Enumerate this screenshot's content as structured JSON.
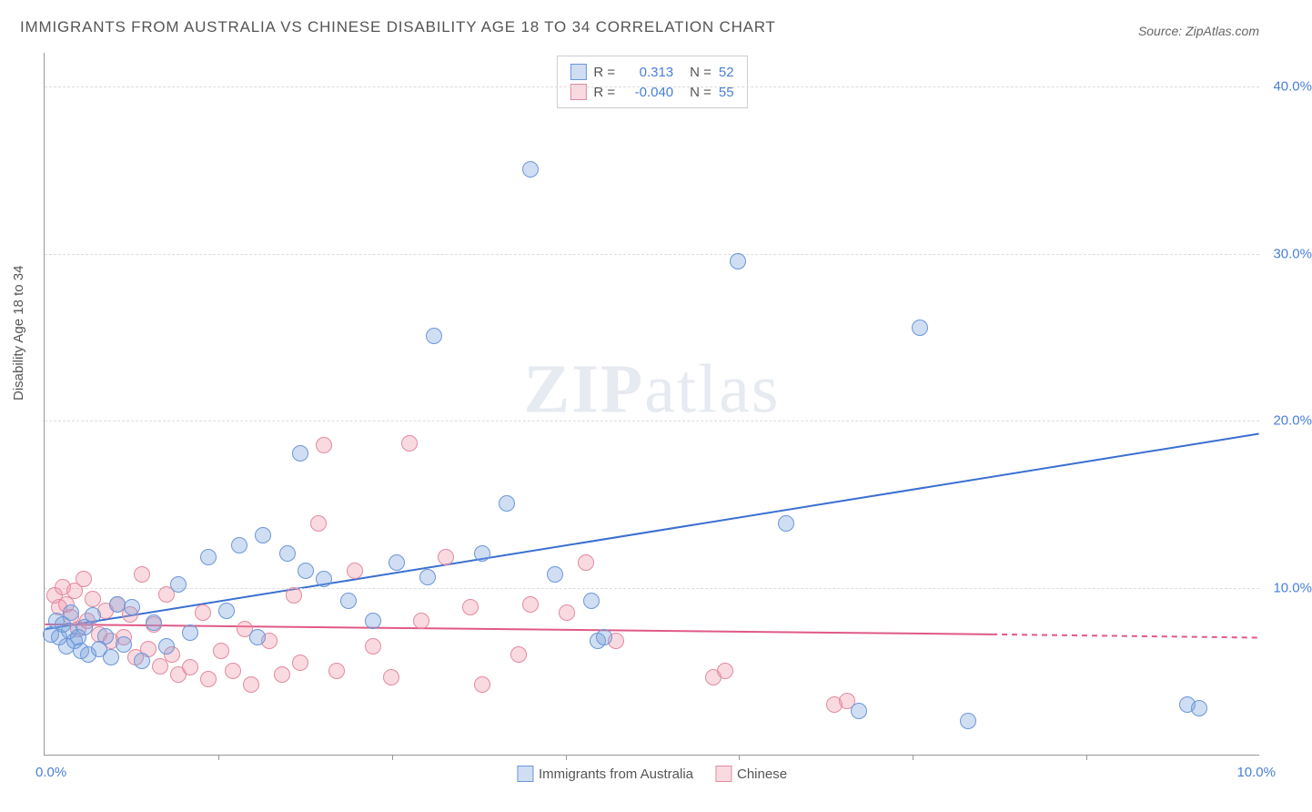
{
  "title": "IMMIGRANTS FROM AUSTRALIA VS CHINESE DISABILITY AGE 18 TO 34 CORRELATION CHART",
  "source": "Source: ZipAtlas.com",
  "ylabel": "Disability Age 18 to 34",
  "watermark_a": "ZIP",
  "watermark_b": "atlas",
  "chart": {
    "type": "scatter",
    "background_color": "#ffffff",
    "grid_color": "#dddddd",
    "axis_color": "#999999",
    "xlim": [
      0,
      10
    ],
    "ylim": [
      0,
      42
    ],
    "ytick_labels": [
      "10.0%",
      "20.0%",
      "30.0%",
      "40.0%"
    ],
    "ytick_values": [
      10,
      20,
      30,
      40
    ],
    "xtick_first": "0.0%",
    "xtick_last": "10.0%",
    "xtick_marks": [
      1.43,
      2.86,
      4.29,
      5.71,
      7.14,
      8.57
    ],
    "marker_radius": 9,
    "marker_stroke_width": 1.5,
    "line_width": 2
  },
  "series": [
    {
      "name": "Immigrants from Australia",
      "fill": "rgba(120,160,220,0.35)",
      "stroke": "#6a97d8",
      "r_label": "R =",
      "r_value": "0.313",
      "n_label": "N =",
      "n_value": "52",
      "trend": {
        "x1": 0,
        "y1": 7.5,
        "x2": 10,
        "y2": 19.2,
        "dash": false,
        "color": "#3a6fd0"
      },
      "points": [
        [
          0.05,
          7.2
        ],
        [
          0.1,
          8.0
        ],
        [
          0.12,
          7.0
        ],
        [
          0.15,
          7.8
        ],
        [
          0.18,
          6.5
        ],
        [
          0.2,
          7.4
        ],
        [
          0.22,
          8.5
        ],
        [
          0.25,
          6.8
        ],
        [
          0.28,
          7.0
        ],
        [
          0.3,
          6.2
        ],
        [
          0.33,
          7.6
        ],
        [
          0.36,
          6.0
        ],
        [
          0.4,
          8.3
        ],
        [
          0.45,
          6.3
        ],
        [
          0.5,
          7.1
        ],
        [
          0.55,
          5.8
        ],
        [
          0.6,
          9.0
        ],
        [
          0.65,
          6.6
        ],
        [
          0.72,
          8.8
        ],
        [
          0.8,
          5.6
        ],
        [
          0.9,
          7.9
        ],
        [
          1.0,
          6.5
        ],
        [
          1.1,
          10.2
        ],
        [
          1.2,
          7.3
        ],
        [
          1.35,
          11.8
        ],
        [
          1.5,
          8.6
        ],
        [
          1.6,
          12.5
        ],
        [
          1.75,
          7.0
        ],
        [
          1.8,
          13.1
        ],
        [
          2.0,
          12.0
        ],
        [
          2.1,
          18.0
        ],
        [
          2.15,
          11.0
        ],
        [
          2.3,
          10.5
        ],
        [
          2.5,
          9.2
        ],
        [
          2.7,
          8.0
        ],
        [
          2.9,
          11.5
        ],
        [
          3.15,
          10.6
        ],
        [
          3.2,
          25.0
        ],
        [
          3.6,
          12.0
        ],
        [
          3.8,
          15.0
        ],
        [
          4.0,
          35.0
        ],
        [
          4.2,
          10.8
        ],
        [
          4.5,
          9.2
        ],
        [
          4.55,
          6.8
        ],
        [
          4.6,
          7.0
        ],
        [
          5.7,
          29.5
        ],
        [
          6.1,
          13.8
        ],
        [
          6.7,
          2.6
        ],
        [
          7.2,
          25.5
        ],
        [
          7.6,
          2.0
        ],
        [
          9.4,
          3.0
        ],
        [
          9.5,
          2.8
        ]
      ]
    },
    {
      "name": "Chinese",
      "fill": "rgba(240,150,170,0.35)",
      "stroke": "#e28aa0",
      "r_label": "R =",
      "r_value": "-0.040",
      "n_label": "N =",
      "n_value": "55",
      "trend": {
        "x1": 0,
        "y1": 7.8,
        "x2": 7.8,
        "y2": 7.2,
        "dash": false,
        "color": "#e05a85"
      },
      "trend_dash": {
        "x1": 7.8,
        "y1": 7.2,
        "x2": 10,
        "y2": 7.0,
        "color": "#e05a85"
      },
      "points": [
        [
          0.08,
          9.5
        ],
        [
          0.12,
          8.8
        ],
        [
          0.15,
          10.0
        ],
        [
          0.18,
          9.0
        ],
        [
          0.22,
          8.2
        ],
        [
          0.25,
          9.8
        ],
        [
          0.28,
          7.5
        ],
        [
          0.32,
          10.5
        ],
        [
          0.35,
          8.0
        ],
        [
          0.4,
          9.3
        ],
        [
          0.45,
          7.2
        ],
        [
          0.5,
          8.6
        ],
        [
          0.55,
          6.8
        ],
        [
          0.6,
          9.0
        ],
        [
          0.65,
          7.0
        ],
        [
          0.7,
          8.4
        ],
        [
          0.75,
          5.8
        ],
        [
          0.8,
          10.8
        ],
        [
          0.85,
          6.3
        ],
        [
          0.9,
          7.8
        ],
        [
          0.95,
          5.3
        ],
        [
          1.0,
          9.6
        ],
        [
          1.05,
          6.0
        ],
        [
          1.1,
          4.8
        ],
        [
          1.2,
          5.2
        ],
        [
          1.3,
          8.5
        ],
        [
          1.35,
          4.5
        ],
        [
          1.45,
          6.2
        ],
        [
          1.55,
          5.0
        ],
        [
          1.65,
          7.5
        ],
        [
          1.7,
          4.2
        ],
        [
          1.85,
          6.8
        ],
        [
          1.95,
          4.8
        ],
        [
          2.05,
          9.5
        ],
        [
          2.1,
          5.5
        ],
        [
          2.25,
          13.8
        ],
        [
          2.3,
          18.5
        ],
        [
          2.4,
          5.0
        ],
        [
          2.55,
          11.0
        ],
        [
          2.7,
          6.5
        ],
        [
          2.85,
          4.6
        ],
        [
          3.0,
          18.6
        ],
        [
          3.1,
          8.0
        ],
        [
          3.3,
          11.8
        ],
        [
          3.5,
          8.8
        ],
        [
          3.6,
          4.2
        ],
        [
          3.9,
          6.0
        ],
        [
          4.0,
          9.0
        ],
        [
          4.3,
          8.5
        ],
        [
          4.45,
          11.5
        ],
        [
          4.7,
          6.8
        ],
        [
          5.5,
          4.6
        ],
        [
          5.6,
          5.0
        ],
        [
          6.5,
          3.0
        ],
        [
          6.6,
          3.2
        ]
      ]
    }
  ],
  "legend_bottom": [
    {
      "label": "Immigrants from Australia"
    },
    {
      "label": "Chinese"
    }
  ]
}
